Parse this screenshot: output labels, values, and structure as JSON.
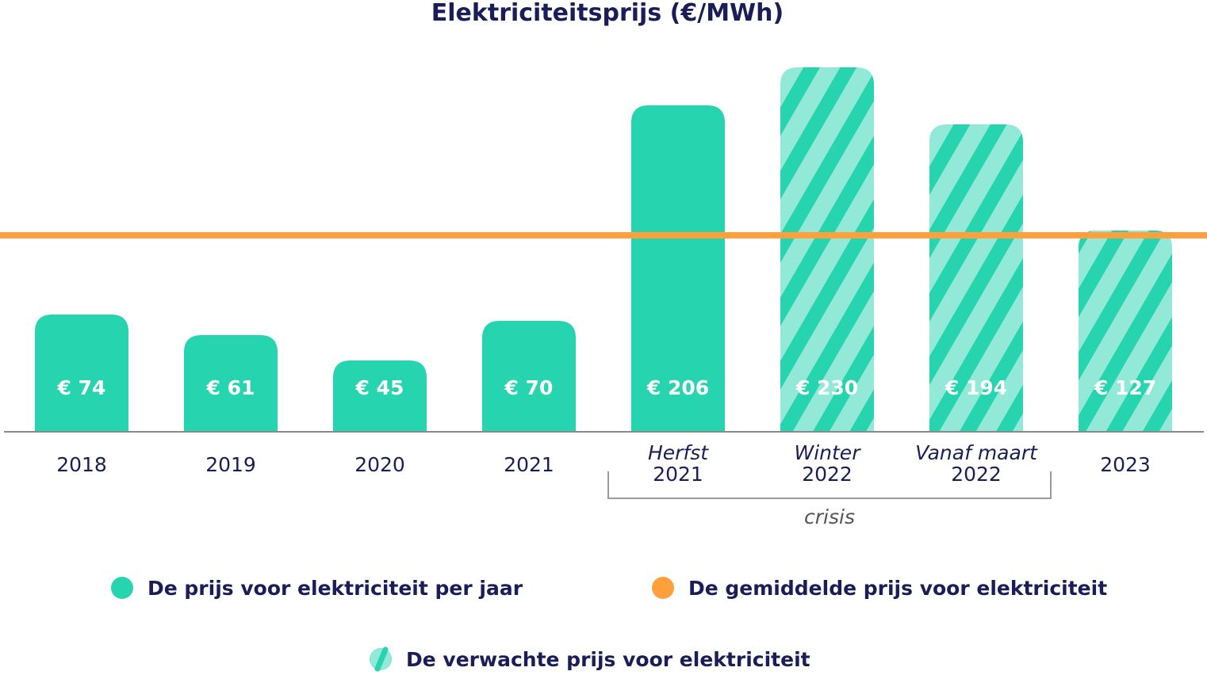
{
  "chart_data": {
    "type": "bar",
    "title": "Elektriciteitsprijs (€/MWh)",
    "categories": [
      {
        "line1": "2018",
        "line2": ""
      },
      {
        "line1": "2019",
        "line2": ""
      },
      {
        "line1": "2020",
        "line2": ""
      },
      {
        "line1": "2021",
        "line2": ""
      },
      {
        "line1": "Herfst",
        "line2": "2021"
      },
      {
        "line1": "Winter",
        "line2": "2022"
      },
      {
        "line1": "Vanaf maart",
        "line2": "2022"
      },
      {
        "line1": "2023",
        "line2": ""
      }
    ],
    "values": [
      74,
      61,
      45,
      70,
      206,
      230,
      194,
      127
    ],
    "value_labels": [
      "€ 74",
      "€ 61",
      "€ 45",
      "€ 70",
      "€ 206",
      "€ 230",
      "€ 194",
      "€ 127"
    ],
    "series_kind": [
      "actual",
      "actual",
      "actual",
      "actual",
      "actual",
      "expected",
      "expected",
      "expected"
    ],
    "average_line_value": 124,
    "ylim": [
      0,
      230
    ],
    "grid": false,
    "group_bracket": {
      "label": "crisis",
      "from_index": 4,
      "to_index": 6
    },
    "legend": {
      "placement": "bottom",
      "items": [
        {
          "label": "De prijs voor elektriciteit per jaar",
          "kind": "actual"
        },
        {
          "label": "De gemiddelde prijs voor elektriciteit",
          "kind": "average"
        },
        {
          "label": "De verwachte prijs voor elektriciteit",
          "kind": "expected"
        }
      ]
    },
    "colors": {
      "actual": "#26D4AF",
      "expected_light": "#93E9D7",
      "average": "#FFA03C",
      "text": "#1B1D58",
      "axis": "#8A8A8A",
      "bracket": "#9A9A9A",
      "bracket_text": "#555555"
    }
  }
}
